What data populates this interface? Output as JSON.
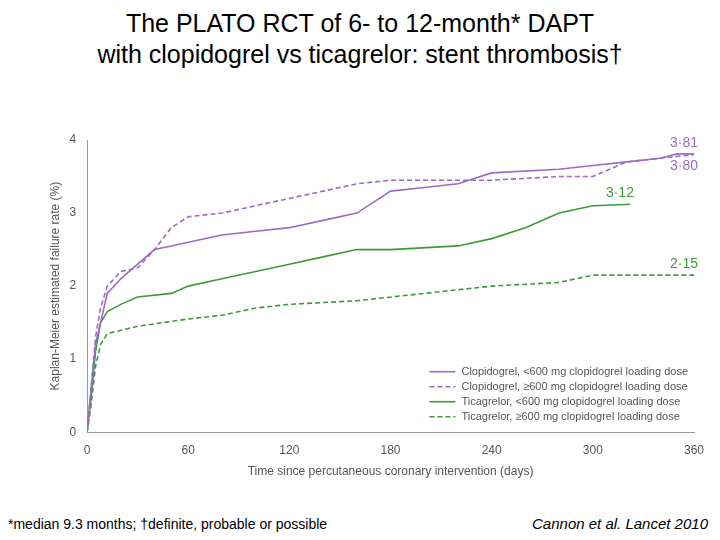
{
  "chart_data": {
    "type": "line",
    "title": [
      "The PLATO RCT of 6- to 12-month* DAPT",
      "with clopidogrel vs ticagrelor: stent thrombosis†"
    ],
    "x_label": "Time since percutaneous coronary intervention (days)",
    "y_label": "Kaplan-Meier estimated failure rate (%)",
    "footnote": "*median 9.3 months; †definite, probable or possible",
    "source": "Cannon et al. Lancet 2010",
    "xlim": [
      0,
      360
    ],
    "xticks": [
      0,
      60,
      120,
      180,
      240,
      300,
      360
    ],
    "ylim": [
      0,
      4
    ],
    "yticks": [
      0,
      1,
      2,
      3,
      4
    ],
    "grid": false,
    "legend": "lower right",
    "series": [
      {
        "name": "Clopidogrel, <600 mg clopidogrel loading dose",
        "color": "#9b6bc3",
        "line_style": "solid",
        "x": [
          0,
          2,
          5,
          8,
          12,
          20,
          30,
          40,
          50,
          60,
          80,
          100,
          120,
          140,
          160,
          180,
          200,
          220,
          240,
          280,
          300,
          320,
          340,
          350,
          360
        ],
        "values": [
          0,
          0.5,
          1.2,
          1.5,
          1.9,
          2.1,
          2.3,
          2.5,
          2.55,
          2.6,
          2.7,
          2.75,
          2.8,
          2.9,
          3.0,
          3.3,
          3.35,
          3.4,
          3.55,
          3.6,
          3.65,
          3.7,
          3.75,
          3.81,
          3.81
        ],
        "end_label": "3·81"
      },
      {
        "name": "Clopidogrel, ≥600 mg clopidogrel loading dose",
        "color": "#9b6bc3",
        "line_style": "dashed",
        "x": [
          0,
          2,
          5,
          8,
          12,
          20,
          30,
          40,
          50,
          60,
          80,
          100,
          120,
          140,
          160,
          180,
          200,
          240,
          280,
          300,
          320,
          340,
          360
        ],
        "values": [
          0,
          0.5,
          1.3,
          1.7,
          2.0,
          2.2,
          2.25,
          2.5,
          2.8,
          2.95,
          3.0,
          3.1,
          3.2,
          3.3,
          3.4,
          3.45,
          3.45,
          3.45,
          3.5,
          3.5,
          3.7,
          3.75,
          3.8
        ],
        "end_label": "3·80"
      },
      {
        "name": "Ticagrelor, <600 mg clopidogrel loading dose",
        "color": "#3c9a3c",
        "line_style": "solid",
        "x": [
          0,
          2,
          5,
          8,
          12,
          20,
          30,
          50,
          60,
          80,
          100,
          120,
          140,
          160,
          180,
          220,
          240,
          260,
          280,
          300,
          322
        ],
        "values": [
          0,
          0.4,
          1.1,
          1.5,
          1.65,
          1.75,
          1.85,
          1.9,
          2.0,
          2.1,
          2.2,
          2.3,
          2.4,
          2.5,
          2.5,
          2.55,
          2.65,
          2.8,
          3.0,
          3.1,
          3.12
        ],
        "end_label": "3·12"
      },
      {
        "name": "Ticagrelor, ≥600 mg clopidogrel loading dose",
        "color": "#3c9a3c",
        "line_style": "dashed",
        "x": [
          0,
          2,
          5,
          8,
          12,
          30,
          60,
          80,
          100,
          120,
          160,
          200,
          240,
          280,
          300,
          360
        ],
        "values": [
          0,
          0.3,
          0.9,
          1.2,
          1.35,
          1.45,
          1.55,
          1.6,
          1.7,
          1.75,
          1.8,
          1.9,
          2.0,
          2.05,
          2.15,
          2.15
        ],
        "end_label": "2·15"
      }
    ]
  }
}
